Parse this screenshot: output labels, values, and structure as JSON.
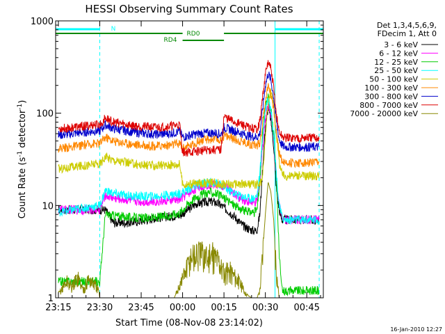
{
  "chart_data": {
    "type": "line",
    "title": "HESSI Observing Summary Count Rates",
    "xlabel": "Start Time (08-Nov-08 23:14:02)",
    "ylabel_main": "Count Rate (s",
    "ylabel_sup1": "-1",
    "ylabel_mid": " detector",
    "ylabel_sup2": "-1",
    "ylabel_end": ")",
    "ylim": [
      1,
      1000
    ],
    "yscale": "log",
    "xlim": [
      -1,
      96
    ],
    "x_units": "minutes after 23:15 on 08-Nov-08",
    "yticks": [
      {
        "value": 1,
        "label": "1"
      },
      {
        "value": 10,
        "label": "10"
      },
      {
        "value": 100,
        "label": "100"
      },
      {
        "value": 1000,
        "label": "1000"
      }
    ],
    "xticks": [
      {
        "value": 0,
        "label": "23:15"
      },
      {
        "value": 15,
        "label": "23:30"
      },
      {
        "value": 30,
        "label": "23:45"
      },
      {
        "value": 45,
        "label": "00:00"
      },
      {
        "value": 60,
        "label": "00:15"
      },
      {
        "value": 75,
        "label": "00:30"
      },
      {
        "value": 90,
        "label": "00:45"
      }
    ],
    "legend_header": [
      "Det 1,3,4,5,6,9,",
      "FDecim 1, Att 0"
    ],
    "legend_position": "right",
    "grid": false,
    "series": [
      {
        "name": "3 - 6 keV",
        "color": "#000000",
        "x": [
          0,
          3,
          5,
          7,
          9,
          11,
          13,
          15,
          17,
          20,
          25,
          30,
          35,
          40,
          44,
          47,
          50,
          53,
          55,
          57,
          59,
          61,
          63,
          65,
          67,
          69,
          71,
          72,
          73,
          74,
          75,
          76,
          77,
          78,
          79,
          80,
          81,
          82,
          84,
          86,
          88,
          90,
          92,
          94
        ],
        "y": [
          9,
          9,
          9,
          9,
          9,
          9,
          9,
          9,
          9,
          6.5,
          6.5,
          6.8,
          7.3,
          7.6,
          7.8,
          9,
          10.5,
          10.8,
          11,
          10.8,
          10,
          9,
          8,
          7,
          6,
          5.6,
          5.3,
          5.5,
          8,
          25,
          70,
          115,
          85,
          45,
          15,
          9,
          7,
          7,
          7,
          7,
          7,
          7,
          7,
          7
        ]
      },
      {
        "name": "6 - 12 keV",
        "color": "#ff00ff",
        "x": [
          0,
          3,
          5,
          7,
          9,
          11,
          13,
          15,
          17,
          20,
          25,
          30,
          35,
          40,
          44,
          47,
          50,
          53,
          55,
          57,
          59,
          61,
          63,
          65,
          67,
          69,
          71,
          72,
          73,
          74,
          75,
          76,
          77,
          78,
          79,
          80,
          81,
          82,
          84,
          86,
          88,
          90,
          92,
          94
        ],
        "y": [
          9,
          9,
          9,
          9,
          9,
          9,
          9,
          9,
          13,
          12,
          11.5,
          11,
          11,
          11.3,
          11.6,
          13.5,
          15.5,
          16.5,
          17,
          17,
          16.5,
          15.5,
          14,
          12.5,
          11.5,
          11,
          10.5,
          11,
          18,
          45,
          85,
          130,
          100,
          55,
          20,
          10,
          8,
          7,
          7,
          7,
          7,
          7,
          7,
          7
        ]
      },
      {
        "name": "12 - 25 keV",
        "color": "#00cc00",
        "x": [
          0,
          3,
          5,
          7,
          9,
          11,
          13,
          15,
          17,
          20,
          25,
          30,
          35,
          40,
          44,
          47,
          50,
          53,
          55,
          57,
          59,
          61,
          63,
          65,
          67,
          69,
          71,
          72,
          73,
          74,
          75,
          76,
          77,
          78,
          79,
          80,
          81,
          82,
          84,
          86,
          88,
          90,
          92,
          94
        ],
        "y": [
          1.5,
          1.5,
          1.5,
          1.5,
          1.5,
          1.5,
          1.5,
          1.5,
          8,
          7.8,
          7.5,
          7.3,
          7.4,
          7.8,
          8.4,
          10.5,
          12.5,
          13.5,
          14,
          13.5,
          12.5,
          11.5,
          10.5,
          9.5,
          8.8,
          8.5,
          8.5,
          9,
          18,
          60,
          120,
          150,
          110,
          60,
          20,
          3,
          1.2,
          1.2,
          1.2,
          1.2,
          1.2,
          1.2,
          1.2,
          1.2
        ]
      },
      {
        "name": "25 - 50 keV",
        "color": "#00ffff",
        "x": [
          0,
          3,
          5,
          7,
          9,
          11,
          13,
          15,
          17,
          20,
          25,
          30,
          35,
          40,
          44,
          47,
          50,
          53,
          55,
          57,
          59,
          61,
          63,
          65,
          67,
          69,
          71,
          72,
          73,
          74,
          75,
          76,
          77,
          78,
          79,
          80,
          81,
          82,
          84,
          86,
          88,
          90,
          92,
          94
        ],
        "y": [
          8.5,
          8.7,
          8.9,
          9.2,
          9.4,
          9.6,
          9.8,
          10,
          14.5,
          13.5,
          12.8,
          12.5,
          12.6,
          13,
          13.5,
          15,
          16.5,
          17.5,
          18,
          17.5,
          16.5,
          15,
          14,
          13,
          12.5,
          12,
          12,
          13,
          22,
          55,
          110,
          150,
          110,
          60,
          22,
          10,
          7.5,
          7,
          7,
          7,
          7,
          7,
          7,
          7
        ]
      },
      {
        "name": "50 - 100 keV",
        "color": "#cccc00",
        "x": [
          0,
          3,
          5,
          7,
          9,
          11,
          13,
          15,
          17,
          20,
          25,
          30,
          35,
          40,
          44,
          45,
          48,
          51,
          54,
          57,
          59,
          61,
          63,
          65,
          67,
          69,
          71,
          72,
          73,
          74,
          75,
          76,
          77,
          78,
          79,
          80,
          81,
          82,
          84,
          86,
          88,
          90,
          92,
          94
        ],
        "y": [
          25,
          25.5,
          26,
          26.5,
          27,
          27.5,
          28,
          28,
          34,
          31,
          29,
          27.5,
          27,
          27.5,
          28,
          17,
          17,
          17.5,
          17.5,
          17.5,
          17,
          17,
          17,
          17,
          17,
          17,
          17,
          17,
          17,
          20,
          55,
          130,
          170,
          120,
          60,
          30,
          22,
          21,
          21,
          21,
          21,
          21,
          21,
          21
        ]
      },
      {
        "name": "100 - 300 keV",
        "color": "#ff8800",
        "x": [
          0,
          3,
          5,
          7,
          9,
          11,
          13,
          15,
          17,
          20,
          25,
          30,
          35,
          40,
          44,
          45,
          48,
          51,
          54,
          57,
          59,
          60,
          62,
          64,
          66,
          68,
          70,
          72,
          73,
          74,
          75,
          76,
          77,
          78,
          79,
          80,
          81,
          82,
          84,
          86,
          88,
          90,
          92,
          94
        ],
        "y": [
          42,
          42.5,
          43,
          44,
          45,
          46,
          47,
          47,
          55,
          50,
          47,
          45,
          44,
          45,
          47,
          42,
          45,
          50,
          52,
          53,
          50,
          58,
          55,
          52,
          50,
          48,
          46,
          45,
          48,
          80,
          140,
          200,
          170,
          110,
          60,
          38,
          31,
          29,
          29,
          29,
          29,
          29,
          29,
          29
        ]
      },
      {
        "name": "300 - 800 keV",
        "color": "#0000cc",
        "x": [
          0,
          3,
          5,
          7,
          9,
          11,
          13,
          15,
          17,
          20,
          25,
          30,
          35,
          40,
          44,
          45,
          48,
          51,
          54,
          57,
          59,
          60,
          62,
          64,
          66,
          68,
          70,
          72,
          73,
          74,
          75,
          76,
          77,
          78,
          79,
          80,
          81,
          82,
          84,
          86,
          88,
          90,
          92,
          94
        ],
        "y": [
          58,
          59,
          60,
          61,
          62,
          63,
          64,
          64,
          75,
          68,
          64,
          61,
          59,
          60,
          63,
          55,
          58,
          60,
          61,
          61,
          59,
          70,
          67,
          64,
          61,
          58,
          56,
          55,
          60,
          110,
          200,
          270,
          230,
          150,
          80,
          52,
          45,
          43,
          43,
          43,
          43,
          43,
          43,
          43
        ]
      },
      {
        "name": "800 - 7000 keV",
        "color": "#dd0000",
        "x": [
          0,
          3,
          5,
          7,
          9,
          11,
          13,
          15,
          17,
          20,
          25,
          30,
          35,
          40,
          44,
          45,
          48,
          51,
          54,
          57,
          59,
          60,
          62,
          64,
          66,
          68,
          70,
          72,
          73,
          74,
          75,
          76,
          77,
          78,
          79,
          80,
          81,
          82,
          84,
          86,
          88,
          90,
          92,
          94
        ],
        "y": [
          68,
          69,
          70,
          71,
          72,
          73,
          75,
          75,
          88,
          80,
          75,
          72,
          70,
          72,
          75,
          38,
          38,
          39,
          40,
          40,
          40,
          92,
          85,
          80,
          76,
          72,
          68,
          68,
          80,
          150,
          260,
          360,
          300,
          190,
          95,
          63,
          56,
          54,
          54,
          54,
          54,
          54,
          54,
          54
        ]
      },
      {
        "name": "7000 - 20000 keV",
        "color": "#888800",
        "x": [
          0,
          3,
          5,
          7,
          9,
          11,
          13,
          14.5,
          15,
          17,
          20,
          25,
          30,
          35,
          40,
          42,
          44,
          46,
          48,
          50,
          52,
          54,
          56,
          58,
          60,
          62,
          64,
          66,
          68,
          70,
          72,
          73,
          74,
          75,
          76,
          77,
          78,
          79,
          80,
          81,
          82,
          84,
          86,
          88,
          90,
          92,
          94
        ],
        "y": [
          1.1,
          1.5,
          1.3,
          1.7,
          1.2,
          1.6,
          1.4,
          1.2,
          1,
          1,
          1,
          1,
          1,
          1,
          1,
          1,
          1.4,
          1.9,
          2.8,
          2.9,
          3,
          2.7,
          2.9,
          2.6,
          1.8,
          2,
          1.7,
          1.4,
          1.1,
          1,
          1,
          1.2,
          3,
          8,
          18,
          14,
          7,
          2,
          1,
          1,
          1,
          1,
          1,
          1,
          1,
          1,
          1
        ]
      }
    ],
    "annotations": {
      "N": {
        "label": "N",
        "color": "#00ffff",
        "segments": [
          [
            -1,
            15
          ],
          [
            78.5,
            96
          ]
        ]
      },
      "RD0": {
        "label": "RD0",
        "color": "#008800",
        "segments": [
          [
            -1,
            45
          ],
          [
            60,
            96
          ]
        ]
      },
      "RD4": {
        "label": "RD4",
        "color": "#008800",
        "segments": [
          [
            45,
            60
          ]
        ]
      },
      "vlines": [
        {
          "x": 15,
          "color": "#00ffff",
          "style": "dashed"
        },
        {
          "x": 78.5,
          "color": "#00ffff",
          "style": "solid"
        },
        {
          "x": 94.5,
          "color": "#00ffff",
          "style": "dashed"
        }
      ]
    },
    "timestamp": "16-Jan-2010 12:27"
  }
}
